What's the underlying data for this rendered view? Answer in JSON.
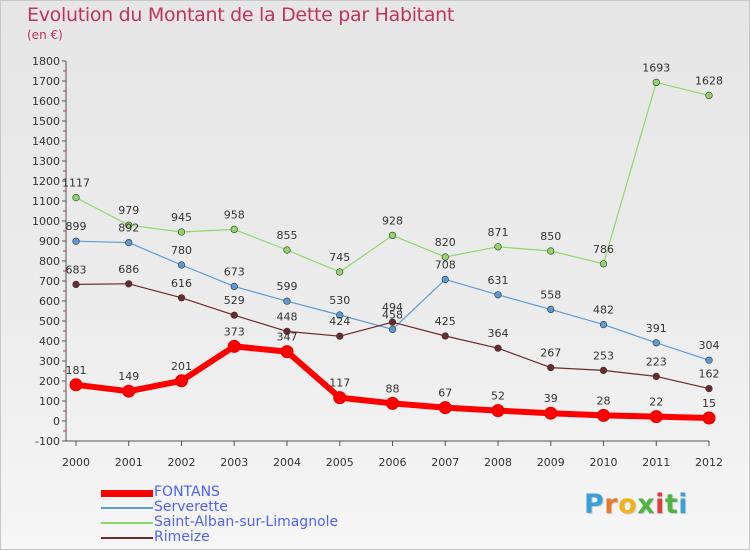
{
  "title": "Evolution du Montant de la Dette par Habitant",
  "subtitle": "(en €)",
  "logo": {
    "text": "Proxiti",
    "letters": [
      "P",
      "r",
      "o",
      "x",
      "i",
      "t",
      "i"
    ],
    "colors": [
      "#3aa0d8",
      "#e8782a",
      "#f2b21c",
      "#4fb343",
      "#e23b3b",
      "#4fb343",
      "#3aa0d8"
    ]
  },
  "chart_data": {
    "type": "line",
    "title": "Evolution du Montant de la Dette par Habitant",
    "subtitle": "(en €)",
    "x": [
      "2000",
      "2001",
      "2002",
      "2003",
      "2004",
      "2005",
      "2006",
      "2007",
      "2008",
      "2009",
      "2010",
      "2011",
      "2012"
    ],
    "y_ticks": [
      "-100",
      "0",
      "100",
      "200",
      "300",
      "400",
      "500",
      "600",
      "700",
      "800",
      "900",
      "1000",
      "1100",
      "1200",
      "1300",
      "1400",
      "1500",
      "1600",
      "1700",
      "1800"
    ],
    "ylim": [
      -100,
      1800
    ],
    "grid": false,
    "legend_position": "bottom-left",
    "series": [
      {
        "name": "FONTANS",
        "color": "#ff0000",
        "line_width": 6,
        "values": [
          181,
          149,
          201,
          373,
          347,
          117,
          88,
          67,
          52,
          39,
          28,
          22,
          15
        ]
      },
      {
        "name": "Serverette",
        "color": "#5b9bd5",
        "line_width": 1.2,
        "values": [
          899,
          892,
          780,
          673,
          599,
          530,
          458,
          708,
          631,
          558,
          482,
          391,
          304
        ]
      },
      {
        "name": "Saint-Alban-sur-Limagnole",
        "color": "#8ed86a",
        "line_width": 1.2,
        "values": [
          1117,
          979,
          945,
          958,
          855,
          745,
          928,
          820,
          871,
          850,
          786,
          1693,
          1628
        ]
      },
      {
        "name": "Rimeize",
        "color": "#6e2a2a",
        "line_width": 1.2,
        "values": [
          683,
          686,
          616,
          529,
          448,
          424,
          494,
          425,
          364,
          267,
          253,
          223,
          162
        ]
      }
    ]
  }
}
